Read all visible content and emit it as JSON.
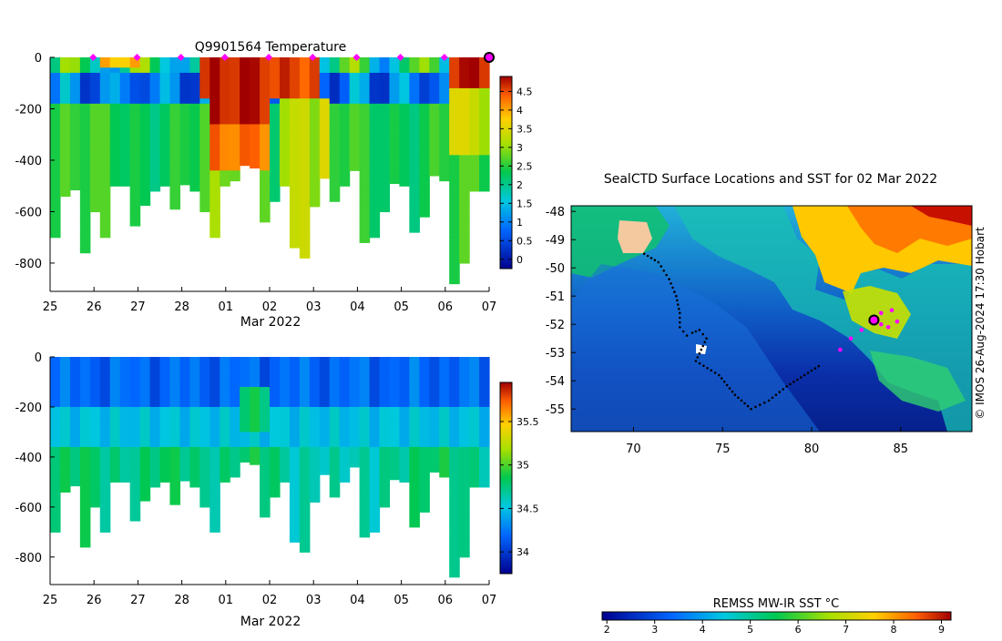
{
  "chart_data": [
    {
      "type": "heatmap",
      "title": "Q9901564  Temperature",
      "xlabel": "Mar 2022",
      "ylabel": "",
      "x_ticks": [
        "25",
        "26",
        "27",
        "28",
        "01",
        "02",
        "03",
        "04",
        "05",
        "06",
        "07"
      ],
      "y_ticks": [
        0,
        -200,
        -400,
        -600,
        -800
      ],
      "ylim": [
        -910,
        0
      ],
      "colorbar_ticks": [
        "0",
        "0.5",
        "1",
        "1.5",
        "2",
        "2.5",
        "3",
        "3.5",
        "4",
        "4.5"
      ],
      "colorbar_range": [
        -0.25,
        4.9
      ],
      "profile_depths": [
        -700,
        -540,
        -515,
        -760,
        -600,
        -700,
        -500,
        -500,
        -655,
        -575,
        -520,
        -500,
        -590,
        -495,
        -520,
        -600,
        -700,
        -500,
        -480,
        -420,
        -430,
        -640,
        -560,
        -500,
        -740,
        -780,
        -580,
        -470,
        -560,
        -500,
        -440,
        -720,
        -700,
        -600,
        -490,
        -500,
        -680,
        -620,
        -460,
        -480,
        -880,
        -800,
        -520,
        -520
      ],
      "surface_markers_x": [
        1,
        2,
        3,
        4,
        5,
        6,
        7,
        8,
        9
      ],
      "current_marker_x": 10
    },
    {
      "type": "heatmap",
      "title": "",
      "xlabel": "Mar 2022",
      "ylabel": "",
      "x_ticks": [
        "25",
        "26",
        "27",
        "28",
        "01",
        "02",
        "03",
        "04",
        "05",
        "06",
        "07"
      ],
      "y_ticks": [
        0,
        -200,
        -400,
        -600,
        -800
      ],
      "ylim": [
        -910,
        0
      ],
      "colorbar_ticks": [
        "34",
        "34.5",
        "35",
        "35.5"
      ],
      "colorbar_range": [
        33.75,
        35.95
      ]
    },
    {
      "type": "heatmap",
      "title": "SealCTD Surface Locations and SST for 02 Mar 2022",
      "xlabel": "",
      "ylabel": "",
      "xlim": [
        66.5,
        89
      ],
      "ylim": [
        -55.8,
        -47.8
      ],
      "x_ticks": [
        "70",
        "75",
        "80",
        "85"
      ],
      "y_ticks": [
        "-48",
        "-49",
        "-50",
        "-51",
        "-52",
        "-53",
        "-54",
        "-55"
      ],
      "track": [
        [
          70.6,
          -49.5
        ],
        [
          71.4,
          -49.8
        ],
        [
          72.0,
          -50.4
        ],
        [
          72.4,
          -51.0
        ],
        [
          72.6,
          -51.6
        ],
        [
          72.6,
          -52.1
        ],
        [
          73.0,
          -52.4
        ],
        [
          73.3,
          -52.3
        ],
        [
          73.7,
          -52.2
        ],
        [
          74.1,
          -52.5
        ],
        [
          73.8,
          -52.9
        ],
        [
          73.5,
          -53.3
        ],
        [
          74.8,
          -53.8
        ],
        [
          75.7,
          -54.5
        ],
        [
          76.6,
          -55.0
        ],
        [
          77.6,
          -54.7
        ],
        [
          78.6,
          -54.2
        ],
        [
          79.6,
          -53.8
        ],
        [
          80.6,
          -53.4
        ]
      ],
      "recent_track": [
        [
          81.6,
          -52.9
        ],
        [
          82.2,
          -52.5
        ],
        [
          82.8,
          -52.2
        ],
        [
          83.3,
          -51.9
        ],
        [
          83.9,
          -51.6
        ],
        [
          84.5,
          -51.5
        ],
        [
          84.8,
          -51.9
        ],
        [
          84.3,
          -52.1
        ],
        [
          83.9,
          -52.0
        ]
      ],
      "current_position": [
        83.5,
        -51.85
      ],
      "colorbar_label": "REMSS MW-IR SST °C",
      "colorbar_ticks": [
        "2",
        "3",
        "4",
        "5",
        "6",
        "7",
        "8",
        "9"
      ],
      "colorbar_range": [
        1.9,
        9.2
      ]
    }
  ],
  "credit_text": "© IMOS 26-Aug-2024 17:30 Hobart",
  "colors": {
    "marker": "#ff00ff",
    "track": "#000000",
    "axis": "#000000"
  }
}
